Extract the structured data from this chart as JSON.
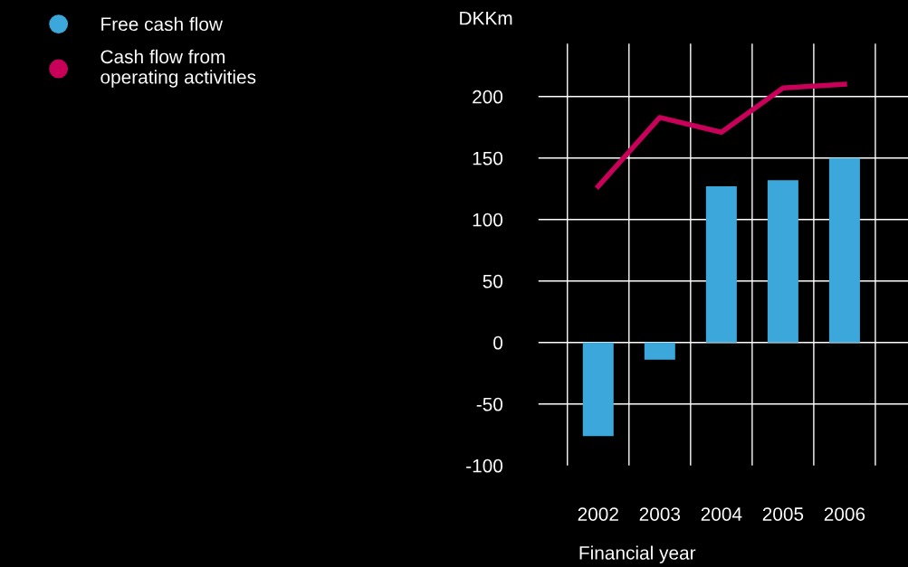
{
  "chart_data": {
    "type": "bar",
    "xlabel": "Financial year",
    "ylabel": "DKKm",
    "categories": [
      "2002",
      "2003",
      "2004",
      "2005",
      "2006"
    ],
    "series": [
      {
        "name": "Free cash flow",
        "color": "#3ba7da",
        "values": [
          -76,
          -14,
          127,
          132,
          150
        ]
      },
      {
        "name": "Cash flow from\noperating activities",
        "type": "line",
        "color": "#c8005a",
        "values": [
          127,
          183,
          171,
          207,
          210
        ]
      }
    ],
    "ylim": [
      -100,
      243
    ],
    "yticks": [
      -100,
      -50,
      0,
      50,
      100,
      150,
      200
    ],
    "grid": true,
    "legend": "top left",
    "marker": "none",
    "line_style": "solid"
  }
}
